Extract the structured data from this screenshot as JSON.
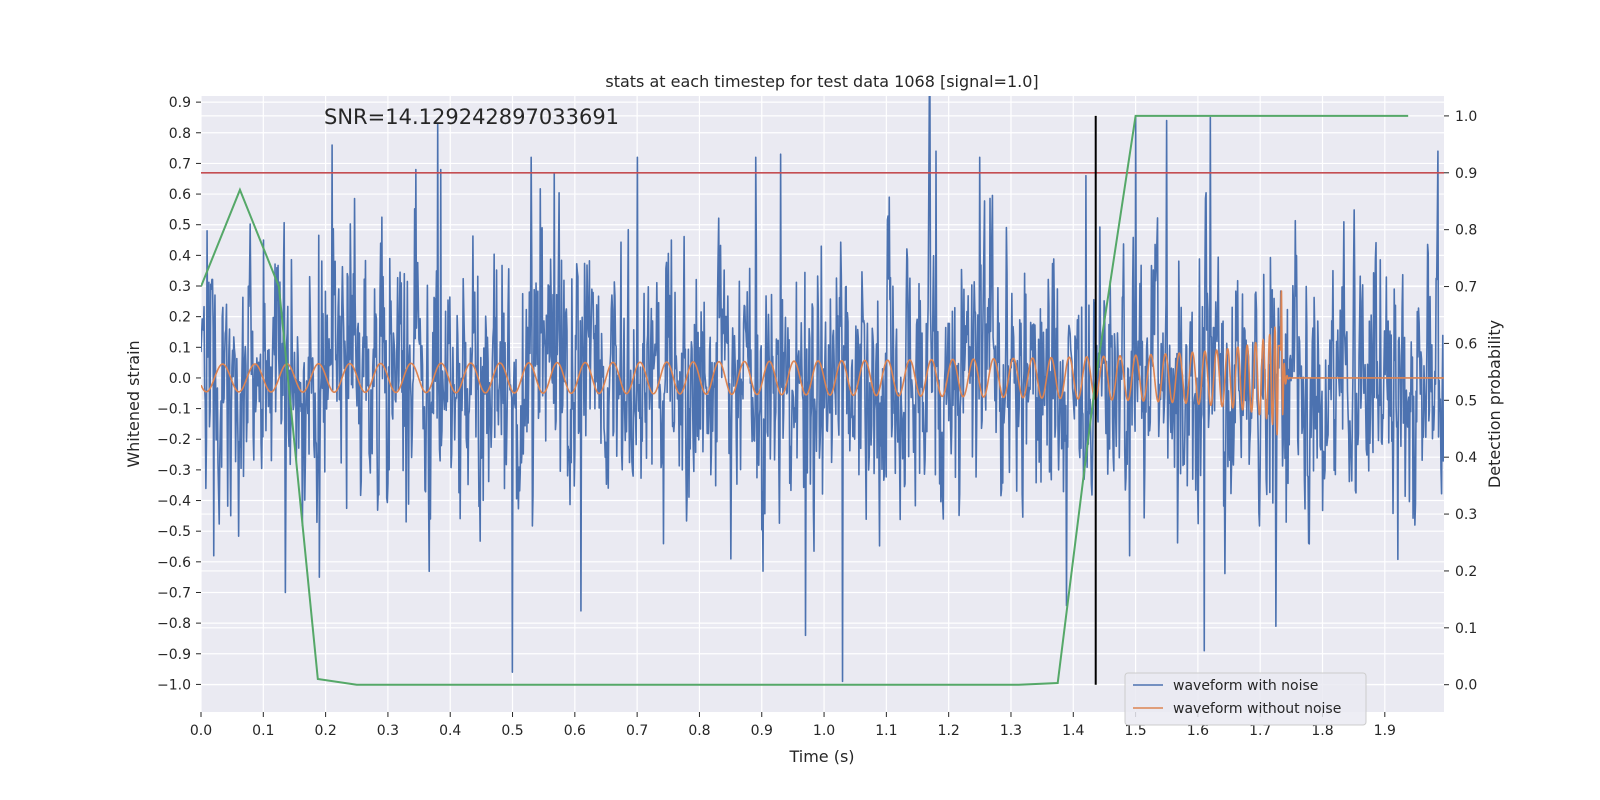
{
  "chart_data": {
    "type": "line",
    "title": "stats at each timestep for test data 1068 [signal=1.0]",
    "xlabel": "Time (s)",
    "ylabel": "Whitened strain",
    "y2label": "Detection probability",
    "xlim": [
      0.0,
      1.995
    ],
    "ylim": [
      -1.09,
      0.92
    ],
    "y2lim": [
      -0.048,
      1.035
    ],
    "xticks": [
      "0.0",
      "0.1",
      "0.2",
      "0.3",
      "0.4",
      "0.5",
      "0.6",
      "0.7",
      "0.8",
      "0.9",
      "1.0",
      "1.1",
      "1.2",
      "1.3",
      "1.4",
      "1.5",
      "1.6",
      "1.7",
      "1.8",
      "1.9"
    ],
    "yticks": [
      "0.9",
      "0.8",
      "0.7",
      "0.6",
      "0.5",
      "0.4",
      "0.3",
      "0.2",
      "0.1",
      "0.0",
      "−0.1",
      "−0.2",
      "−0.3",
      "−0.4",
      "−0.5",
      "−0.6",
      "−0.7",
      "−0.8",
      "−0.9",
      "−1.0"
    ],
    "y2ticks": [
      "1.0",
      "0.9",
      "0.8",
      "0.7",
      "0.6",
      "0.5",
      "0.4",
      "0.3",
      "0.2",
      "0.1",
      "0.0"
    ],
    "grid": true,
    "legend_position": "lower-right",
    "annotation": "SNR=14.129242897033691",
    "threshold_y2": 0.9,
    "event_time": 1.436,
    "colors": {
      "background": "#eaeaf2",
      "grid": "#ffffff",
      "noisy": "#4c72b0",
      "clean": "#dd8452",
      "probability": "#55a868",
      "threshold": "#c44e52",
      "event": "#000000",
      "text": "#262626"
    },
    "series": [
      {
        "name": "waveform with noise",
        "color": "#4c72b0",
        "generated_samples": 2048,
        "noise_std": 0.22,
        "spikes": [
          [
            0.01,
            0.48
          ],
          [
            0.02,
            -0.58
          ],
          [
            0.1,
            0.45
          ],
          [
            0.135,
            -0.7
          ],
          [
            0.19,
            -0.65
          ],
          [
            0.21,
            0.76
          ],
          [
            0.345,
            0.68
          ],
          [
            0.38,
            0.83
          ],
          [
            0.385,
            0.68
          ],
          [
            0.5,
            -0.96
          ],
          [
            0.53,
            0.72
          ],
          [
            0.61,
            -0.76
          ],
          [
            0.7,
            0.72
          ],
          [
            0.89,
            0.72
          ],
          [
            0.93,
            0.73
          ],
          [
            0.97,
            -0.84
          ],
          [
            1.03,
            -0.99
          ],
          [
            1.18,
            0.74
          ],
          [
            1.25,
            0.72
          ],
          [
            1.42,
            0.66
          ],
          [
            1.5,
            0.85
          ],
          [
            1.55,
            0.84
          ],
          [
            1.61,
            -0.89
          ],
          [
            1.62,
            0.85
          ],
          [
            1.725,
            -0.81
          ],
          [
            1.985,
            0.74
          ]
        ]
      },
      {
        "name": "waveform without noise",
        "color": "#dd8452",
        "f0_hz": 19,
        "a0": 0.045,
        "t_merge": 1.733
      },
      {
        "name": "detection probability",
        "color": "#55a868",
        "axis": "right",
        "x": [
          0.0,
          0.0625,
          0.125,
          0.1875,
          0.25,
          0.3125,
          0.375,
          0.4375,
          0.5,
          0.5625,
          0.625,
          0.6875,
          0.75,
          0.8125,
          0.875,
          0.9375,
          1.0,
          1.0625,
          1.125,
          1.1875,
          1.25,
          1.3125,
          1.375,
          1.4375,
          1.5,
          1.5625,
          1.625,
          1.6875,
          1.75,
          1.8125,
          1.875,
          1.9375
        ],
        "values": [
          0.7,
          0.87,
          0.7,
          0.01,
          0.0,
          0.0,
          0.0,
          0.0,
          0.0,
          0.0,
          0.0,
          0.0,
          0.0,
          0.0,
          0.0,
          0.0,
          0.0,
          0.0,
          0.0,
          0.0,
          0.0,
          0.0,
          0.003,
          0.55,
          1.0,
          1.0,
          1.0,
          1.0,
          1.0,
          1.0,
          1.0,
          1.0
        ]
      }
    ]
  }
}
